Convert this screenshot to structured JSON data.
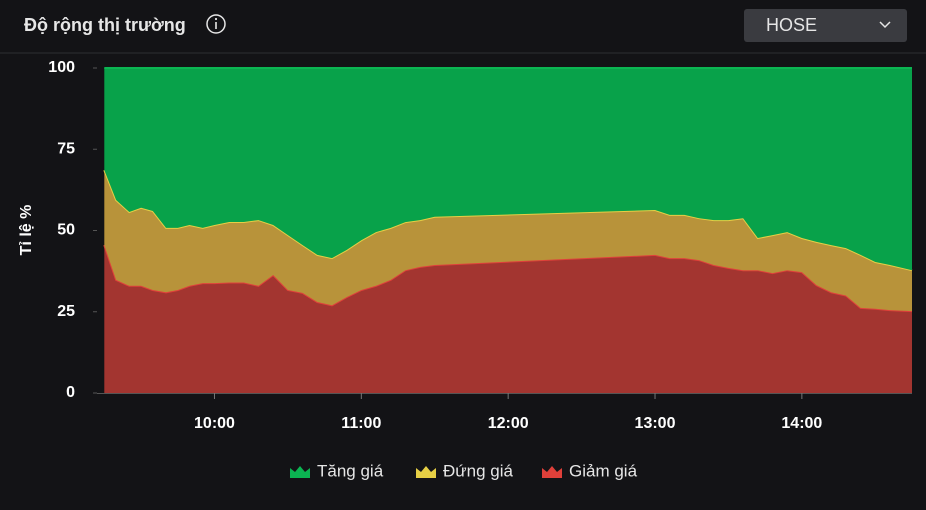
{
  "header": {
    "title": "Độ rộng thị trường",
    "exchange": "HOSE"
  },
  "chart_data": {
    "type": "area",
    "stacked": true,
    "y_label": "Tỉ lệ %",
    "x": [
      9.25,
      9.33,
      9.42,
      9.5,
      9.58,
      9.67,
      9.75,
      9.83,
      9.92,
      10.0,
      10.1,
      10.2,
      10.3,
      10.4,
      10.5,
      10.6,
      10.7,
      10.8,
      10.9,
      11.0,
      11.1,
      11.2,
      11.3,
      11.4,
      11.5,
      13.0,
      13.1,
      13.2,
      13.3,
      13.4,
      13.5,
      13.6,
      13.7,
      13.8,
      13.9,
      14.0,
      14.1,
      14.2,
      14.3,
      14.4,
      14.5,
      14.6,
      14.75
    ],
    "xlim": [
      9.2,
      14.75
    ],
    "xticks": [
      {
        "value": 10,
        "label": "10:00"
      },
      {
        "value": 11,
        "label": "11:00"
      },
      {
        "value": 12,
        "label": "12:00"
      },
      {
        "value": 13,
        "label": "13:00"
      },
      {
        "value": 14,
        "label": "14:00"
      }
    ],
    "ylim": [
      0,
      100
    ],
    "yticks": [
      0,
      25,
      50,
      75,
      100
    ],
    "series": [
      {
        "name": "Tăng giá",
        "color": "#08a24a",
        "line_color": "#0bb552",
        "values": [
          31.4,
          40.6,
          44.3,
          43,
          44,
          49.2,
          49.2,
          48.3,
          49.2,
          48.3,
          47.4,
          47.4,
          46.8,
          48.3,
          51.4,
          54.5,
          57.5,
          58.5,
          56,
          53,
          50.5,
          49.2,
          47.4,
          46.8,
          45.8,
          43.7,
          45.2,
          45.2,
          46.2,
          46.8,
          46.8,
          46.2,
          52.3,
          51.4,
          50.5,
          52.3,
          53.5,
          54.5,
          55.4,
          57.5,
          59.7,
          60.6,
          62.2
        ]
      },
      {
        "name": "Đứng giá",
        "color": "#b8933a",
        "line_color": "#e6cf45",
        "values": [
          23.1,
          24.6,
          22.7,
          24,
          24.3,
          19.8,
          19.1,
          18.7,
          17,
          17.9,
          18.6,
          18.6,
          20.2,
          15.4,
          16.9,
          14.7,
          14.5,
          14.5,
          14.5,
          15.3,
          16.5,
          16,
          14.8,
          14.4,
          14.8,
          13.8,
          13.3,
          13.3,
          12.9,
          13.8,
          14.7,
          16,
          9.9,
          11.7,
          11.7,
          10.5,
          13.3,
          14.5,
          14.6,
          16.3,
          14.4,
          13.9,
          12.6
        ]
      },
      {
        "name": "Giảm giá",
        "color": "#a33530",
        "line_color": "#e0403a",
        "values": [
          45.5,
          34.8,
          33,
          33,
          31.7,
          31,
          31.7,
          33,
          33.8,
          33.8,
          34,
          34,
          33,
          36.3,
          31.7,
          30.8,
          28,
          27,
          29.5,
          31.7,
          33,
          34.8,
          37.8,
          38.8,
          39.4,
          42.5,
          41.5,
          41.5,
          40.9,
          39.4,
          38.5,
          37.8,
          37.8,
          36.9,
          37.8,
          37.2,
          33.2,
          31,
          30,
          26.2,
          25.9,
          25.5,
          25.2
        ]
      }
    ]
  }
}
